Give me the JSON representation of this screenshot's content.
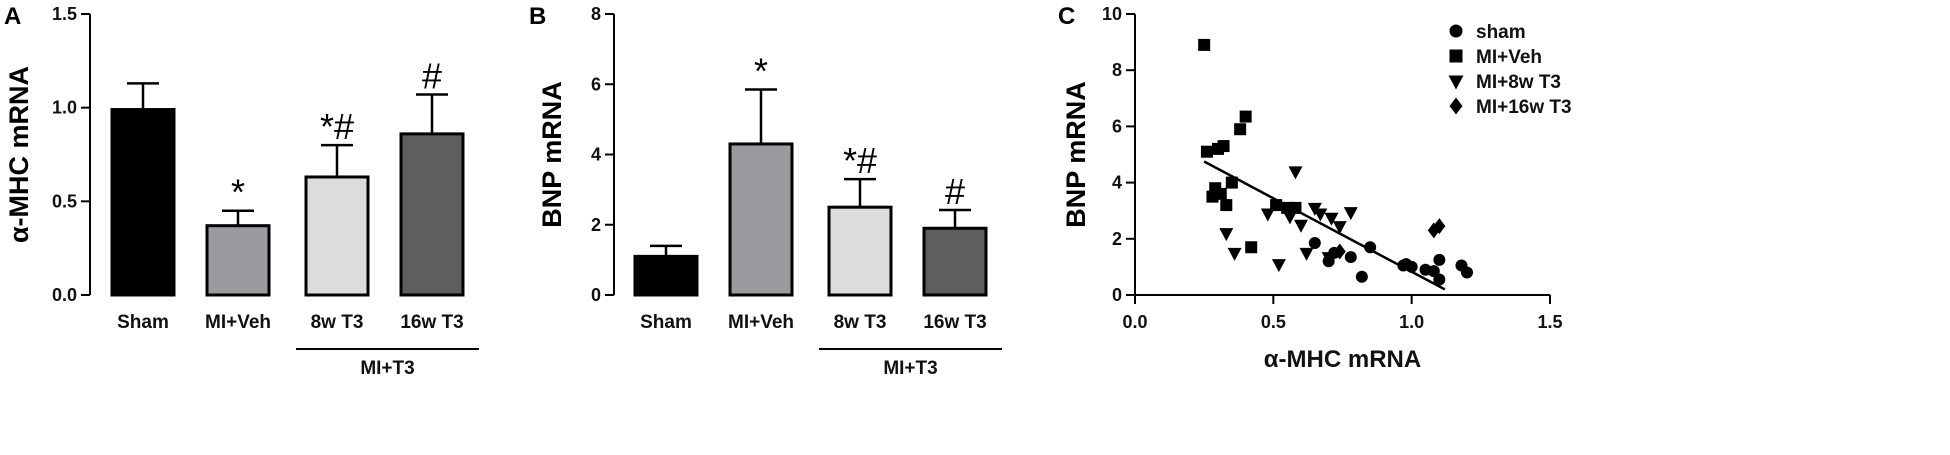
{
  "chart_data": [
    {
      "panel": "A",
      "type": "bar",
      "ylabel": "α-MHC mRNA",
      "ylim": [
        0,
        1.5
      ],
      "yticks": [
        "0.0",
        "0.5",
        "1.0",
        "1.5"
      ],
      "categories": [
        "Sham",
        "MI+Veh",
        "8w T3",
        "16w T3"
      ],
      "values": [
        0.99,
        0.37,
        0.63,
        0.86
      ],
      "errors": [
        0.14,
        0.08,
        0.17,
        0.21
      ],
      "annotations": [
        "",
        "*",
        "*#",
        "#"
      ],
      "colors": [
        "#000000",
        "#9a9a9f",
        "#dcdcdc",
        "#5e5e5e"
      ],
      "group_label": "MI+T3",
      "group_span": [
        2,
        3
      ]
    },
    {
      "panel": "B",
      "type": "bar",
      "ylabel": "BNP mRNA",
      "ylim": [
        0,
        8
      ],
      "yticks": [
        "0",
        "2",
        "4",
        "6",
        "8"
      ],
      "categories": [
        "Sham",
        "MI+Veh",
        "8w T3",
        "16w T3"
      ],
      "values": [
        1.1,
        4.3,
        2.5,
        1.9
      ],
      "errors": [
        0.3,
        1.55,
        0.8,
        0.52
      ],
      "annotations": [
        "",
        "*",
        "*#",
        "#"
      ],
      "colors": [
        "#000000",
        "#9a9a9f",
        "#dcdcdc",
        "#5e5e5e"
      ],
      "group_label": "MI+T3",
      "group_span": [
        2,
        3
      ]
    },
    {
      "panel": "C",
      "type": "scatter",
      "xlabel": "α-MHC mRNA",
      "ylabel": "BNP mRNA",
      "xlim": [
        0,
        1.5
      ],
      "ylim": [
        0,
        10
      ],
      "xticks": [
        "0.0",
        "0.5",
        "1.0",
        "1.5"
      ],
      "yticks": [
        "0",
        "2",
        "4",
        "6",
        "8",
        "10"
      ],
      "legend_position": "top-right",
      "series": [
        {
          "name": "sham",
          "marker": "circle",
          "x": [
            0.65,
            0.7,
            0.72,
            0.78,
            0.82,
            0.85,
            0.97,
            0.98,
            1.0,
            1.05,
            1.08,
            1.1,
            1.1,
            1.18,
            1.2
          ],
          "y": [
            1.85,
            1.2,
            1.5,
            1.35,
            0.65,
            1.7,
            1.05,
            1.1,
            1.0,
            0.9,
            0.85,
            1.25,
            0.55,
            1.05,
            0.8
          ]
        },
        {
          "name": "MI+Veh",
          "marker": "square",
          "x": [
            0.25,
            0.26,
            0.28,
            0.29,
            0.3,
            0.31,
            0.32,
            0.33,
            0.35,
            0.38,
            0.4,
            0.42,
            0.51,
            0.55,
            0.58
          ],
          "y": [
            8.9,
            5.1,
            3.5,
            3.8,
            5.2,
            3.6,
            5.3,
            3.2,
            4.0,
            5.9,
            6.35,
            1.7,
            3.2,
            3.1,
            3.1
          ]
        },
        {
          "name": "MI+8w T3",
          "marker": "triangle-down",
          "x": [
            0.33,
            0.36,
            0.48,
            0.52,
            0.56,
            0.58,
            0.6,
            0.62,
            0.65,
            0.67,
            0.7,
            0.71,
            0.74,
            0.78
          ],
          "y": [
            2.2,
            1.5,
            2.9,
            1.1,
            2.8,
            4.4,
            2.5,
            1.5,
            3.1,
            2.9,
            1.35,
            2.75,
            2.45,
            2.95
          ]
        },
        {
          "name": "MI+16w T3",
          "marker": "diamond",
          "x": [
            0.74,
            1.08,
            1.1
          ],
          "y": [
            1.55,
            2.3,
            2.45
          ]
        }
      ],
      "fit_line": {
        "x": [
          0.25,
          1.12
        ],
        "y": [
          4.75,
          0.2
        ]
      }
    }
  ]
}
